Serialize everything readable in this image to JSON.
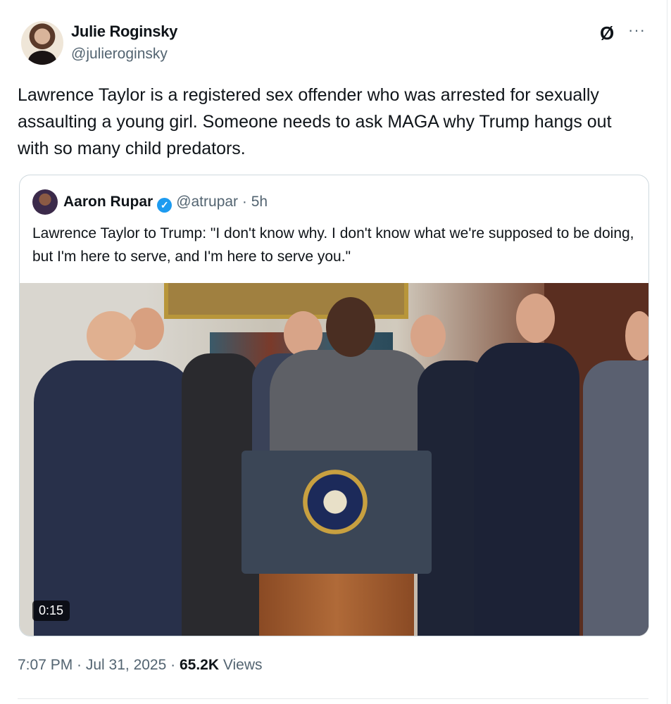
{
  "author": {
    "name": "Julie Roginsky",
    "handle": "@julieroginsky"
  },
  "actions": {
    "grok_icon": "grok-icon",
    "more_icon": "more-icon",
    "more_label": "···",
    "grok_label": "Ø"
  },
  "tweet_text": "Lawrence Taylor is a registered sex offender who was arrested for sexually assaulting a young girl. Someone needs to ask MAGA why Trump hangs out with so many child predators.",
  "quote": {
    "name": "Aaron Rupar",
    "verified": true,
    "handle_time": "@atrupar · 5h",
    "text": "Lawrence Taylor to Trump: \"I don't know why. I don't know what we're supposed to be doing, but I'm here to serve, and I'm here to serve you.\"",
    "video_duration": "0:15"
  },
  "meta": {
    "time": "7:07 PM · Jul 31, 2025 · ",
    "views_count": "65.2K",
    "views_label": " Views"
  },
  "colors": {
    "verified": "#1d9bf0",
    "secondary_text": "#536471"
  }
}
